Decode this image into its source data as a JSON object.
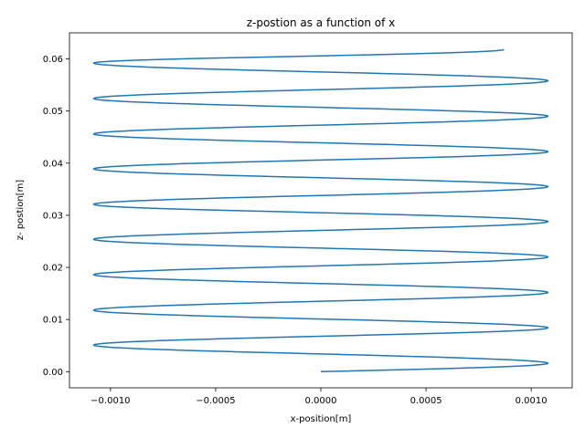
{
  "chart_data": {
    "type": "line",
    "title": "z-postion as a function of x",
    "xlabel": "x-position[m]",
    "ylabel": "z- postion[m]",
    "xlim": [
      -0.001195,
      0.001195
    ],
    "ylim": [
      -0.0031,
      0.065
    ],
    "xticks": [
      -0.001,
      -0.0005,
      0.0,
      0.0005,
      0.001
    ],
    "xtick_labels": [
      "−0.0010",
      "−0.0005",
      "0.0000",
      "0.0005",
      "0.0010"
    ],
    "yticks": [
      0.0,
      0.01,
      0.02,
      0.03,
      0.04,
      0.05,
      0.06
    ],
    "ytick_labels": [
      "0.00",
      "0.01",
      "0.02",
      "0.03",
      "0.04",
      "0.05",
      "0.06"
    ],
    "grid": false,
    "series": [
      {
        "color": "#1f77b4",
        "x": [
          0.0,
          0.00108,
          0.0,
          -0.00108,
          0.0,
          0.00108,
          0.0,
          -0.00108,
          0.0,
          0.00108,
          0.0,
          -0.00108,
          0.0,
          0.00108,
          0.0,
          -0.00108,
          0.0,
          0.00108,
          0.0,
          -0.00108,
          0.0,
          0.00108,
          0.0,
          -0.00108,
          0.0,
          0.00108,
          0.0,
          -0.00108,
          0.0,
          0.00108,
          0.0,
          -0.00108,
          0.0,
          0.00108,
          0.0,
          -0.00108,
          0.00087
        ],
        "y": [
          0.0,
          0.0016,
          0.0034,
          0.0051,
          0.0068,
          0.0084,
          0.0101,
          0.0118,
          0.0135,
          0.0152,
          0.0169,
          0.0186,
          0.0203,
          0.022,
          0.0237,
          0.0254,
          0.0271,
          0.0288,
          0.0305,
          0.0321,
          0.0338,
          0.0355,
          0.0372,
          0.0389,
          0.0406,
          0.0422,
          0.0439,
          0.0456,
          0.0473,
          0.049,
          0.0507,
          0.0524,
          0.0541,
          0.0558,
          0.0575,
          0.0592,
          0.0618
        ]
      }
    ]
  }
}
